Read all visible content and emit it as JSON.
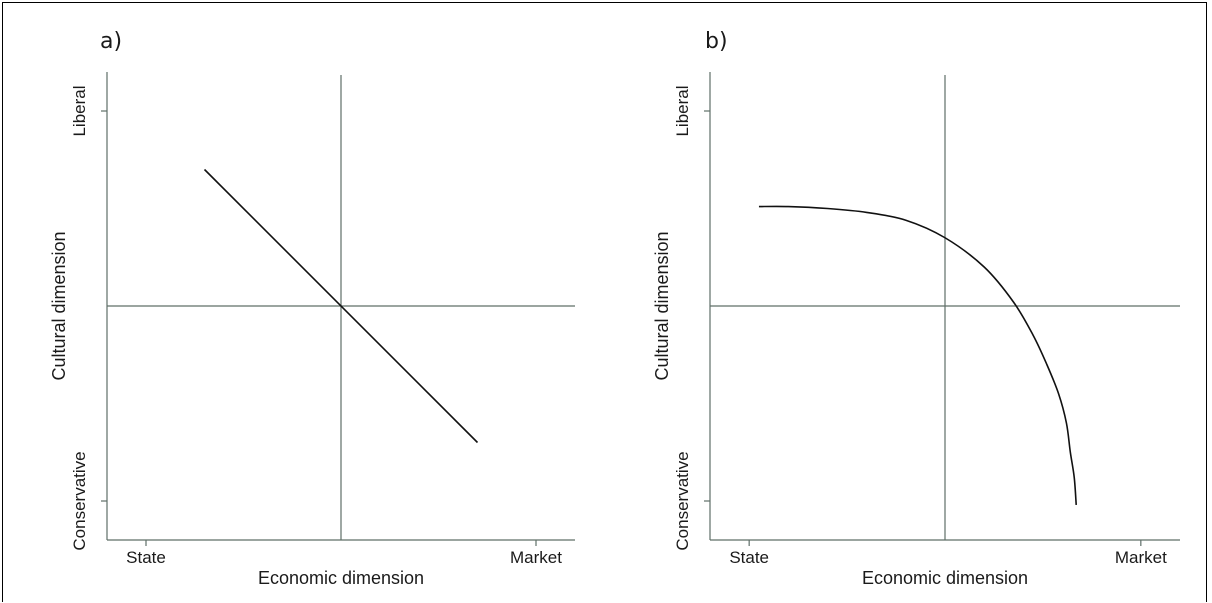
{
  "chart_data": [
    {
      "type": "line",
      "panel_label": "a)",
      "xlabel": "Economic dimension",
      "ylabel": "Cultural dimension",
      "x_ticks": [
        "State",
        "Market"
      ],
      "y_ticks": [
        "Conservative",
        "Liberal"
      ],
      "xlim": [
        -1.2,
        1.2
      ],
      "ylim": [
        -1.2,
        1.2
      ],
      "reference_lines": {
        "x": 0,
        "y": 0
      },
      "grid": false,
      "series": [
        {
          "x": [
            -0.7,
            0.7
          ],
          "y": [
            0.7,
            -0.7
          ]
        }
      ],
      "line_color": "#111111",
      "axis_color": "#5f6f68"
    },
    {
      "type": "line",
      "panel_label": "b)",
      "xlabel": "Economic dimension",
      "ylabel": "Cultural dimension",
      "x_ticks": [
        "State",
        "Market"
      ],
      "y_ticks": [
        "Conservative",
        "Liberal"
      ],
      "xlim": [
        -1.2,
        1.2
      ],
      "ylim": [
        -1.2,
        1.2
      ],
      "reference_lines": {
        "x": 0,
        "y": 0
      },
      "grid": false,
      "series": [
        {
          "x": [
            -0.95,
            -0.8,
            -0.6,
            -0.4,
            -0.2,
            0.0,
            0.2,
            0.35,
            0.45,
            0.52,
            0.58,
            0.62,
            0.64,
            0.66,
            0.67
          ],
          "y": [
            0.51,
            0.51,
            0.5,
            0.48,
            0.44,
            0.35,
            0.2,
            0.02,
            -0.15,
            -0.3,
            -0.45,
            -0.6,
            -0.75,
            -0.88,
            -1.02
          ]
        }
      ],
      "line_color": "#111111",
      "axis_color": "#5f6f68"
    }
  ]
}
